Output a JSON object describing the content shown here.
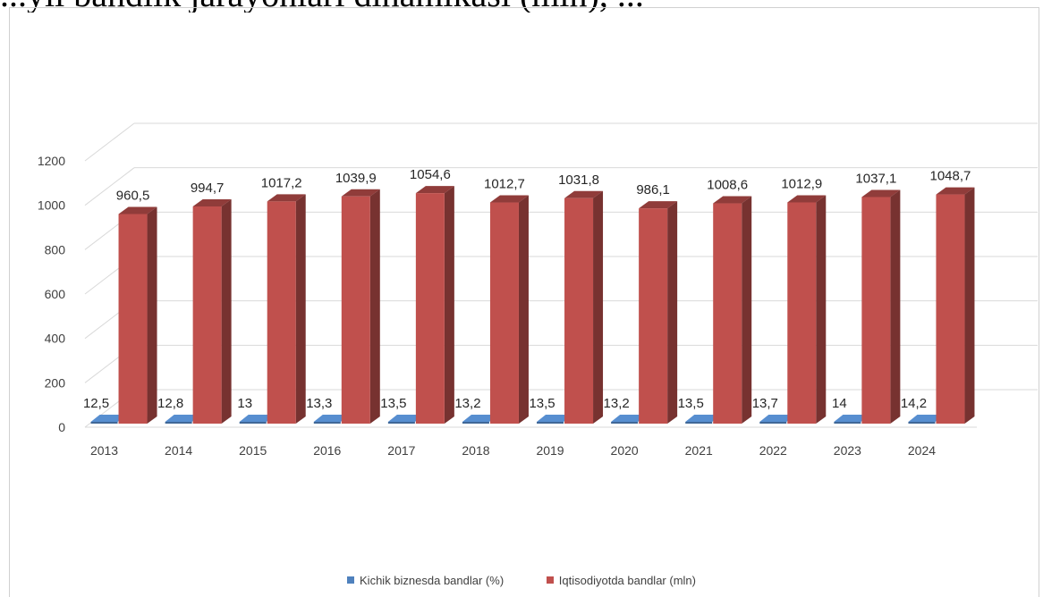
{
  "caption": {
    "text": "...yil bandlik jarayonlari dinamikasi (mln), ..."
  },
  "colors": {
    "series1": "#4f81bd",
    "series2": "#c0504d",
    "grid": "#d9d9d9",
    "axis_text": "#404040",
    "label_text": "#262626"
  },
  "chart_data": {
    "type": "bar",
    "style": "3d-clustered-column",
    "categories": [
      "2013",
      "2014",
      "2015",
      "2016",
      "2017",
      "2018",
      "2019",
      "2020",
      "2021",
      "2022",
      "2023",
      "2024"
    ],
    "series": [
      {
        "name": "Kichik biznesda bandlar (%)",
        "values": [
          12.5,
          12.8,
          13,
          13.3,
          13.5,
          13.2,
          13.5,
          13.2,
          13.5,
          13.7,
          14,
          14.2
        ],
        "labels": [
          "12,5",
          "12,8",
          "13",
          "13,3",
          "13,5",
          "13,2",
          "13,5",
          "13,2",
          "13,5",
          "13,7",
          "14",
          "14,2"
        ]
      },
      {
        "name": "Iqtisodiyotda bandlar (mln)",
        "values": [
          960.5,
          994.7,
          1017.2,
          1039.9,
          1054.6,
          1012.7,
          1031.8,
          986.1,
          1008.6,
          1012.9,
          1037.1,
          1048.7
        ],
        "labels": [
          "960,5",
          "994,7",
          "1017,2",
          "1039,9",
          "1054,6",
          "1012,7",
          "1031,8",
          "986,1",
          "1008,6",
          "1012,9",
          "1037,1",
          "1048,7"
        ]
      }
    ],
    "yticks": [
      "0",
      "200",
      "400",
      "600",
      "800",
      "1000",
      "1200"
    ],
    "ylim": [
      0,
      1200
    ],
    "grid": true,
    "legend_position": "bottom"
  }
}
